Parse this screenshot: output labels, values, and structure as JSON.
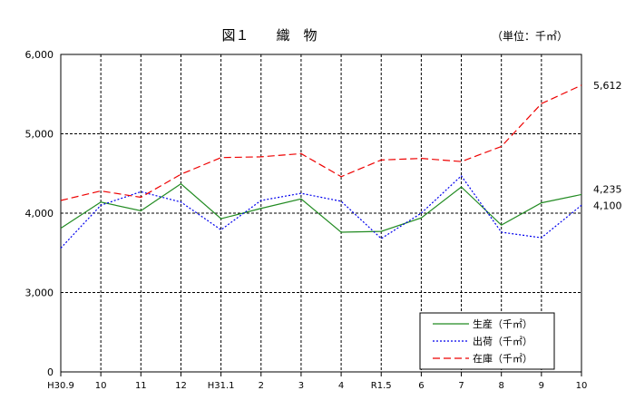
{
  "chart_data": {
    "type": "line",
    "title": "図１　　織　物",
    "unit": "（単位：千㎡）",
    "categories": [
      "H30.9",
      "10",
      "11",
      "12",
      "H31.1",
      "2",
      "3",
      "4",
      "R1.5",
      "6",
      "7",
      "8",
      "9",
      "10"
    ],
    "ylim": [
      0,
      6000
    ],
    "yticks": [
      0,
      3000,
      4000,
      5000,
      6000
    ],
    "ytick_labels": [
      "0",
      "3,000",
      "4,000",
      "5,000",
      "6,000"
    ],
    "grid": true,
    "legend_position": "bottom-right",
    "series": [
      {
        "name": "生産（千㎡）",
        "color": "#228B22",
        "dash": "solid",
        "values": [
          3810,
          4140,
          4030,
          4370,
          3930,
          4060,
          4180,
          3760,
          3770,
          3940,
          4330,
          3850,
          4130,
          4235
        ]
      },
      {
        "name": "出荷（千㎡）",
        "color": "#0000EE",
        "dash": "dotted",
        "values": [
          3560,
          4100,
          4270,
          4140,
          3790,
          4160,
          4250,
          4150,
          3680,
          4000,
          4470,
          3760,
          3690,
          4100
        ]
      },
      {
        "name": "在庫（千㎡）",
        "color": "#EE0000",
        "dash": "dashed",
        "values": [
          4160,
          4280,
          4200,
          4490,
          4700,
          4710,
          4750,
          4460,
          4670,
          4690,
          4650,
          4840,
          5380,
          5612
        ]
      }
    ],
    "end_labels": [
      "4,235",
      "4,100",
      "5,612"
    ]
  }
}
